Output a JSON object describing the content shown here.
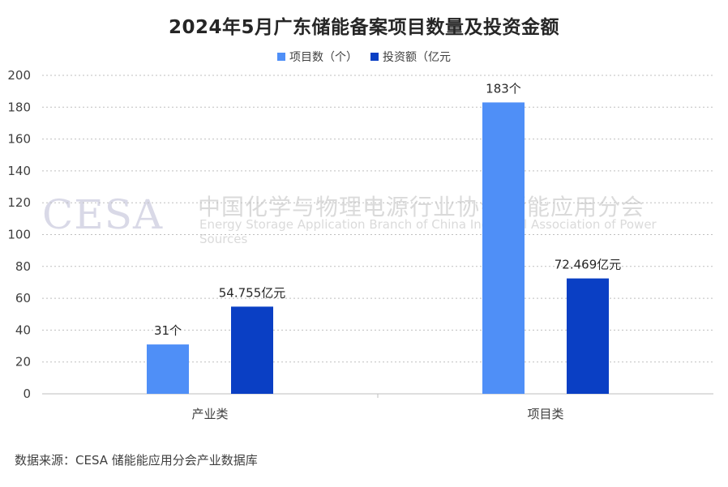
{
  "title": "2024年5月广东储能备案项目数量及投资金额",
  "source": "数据来源：CESA 储能能应用分会产业数据库",
  "watermark": {
    "logo": "CESA",
    "cn": "中国化学与物理电源行业协会储能应用分会",
    "en": "Energy Storage Application Branch of China Industrial Association of Power Sources"
  },
  "colors": {
    "series1": "#4f8ff7",
    "series2": "#0a3fc4",
    "grid": "#bfbfbf",
    "axis": "#bfbfbf",
    "text": "#404040"
  },
  "chart_data": {
    "type": "bar",
    "categories": [
      "产业类",
      "项目类"
    ],
    "series": [
      {
        "name": "项目数（个）",
        "values": [
          31,
          183
        ],
        "labels": [
          "31个",
          "183个"
        ]
      },
      {
        "name": "投资额（亿元",
        "values": [
          54.755,
          72.469
        ],
        "labels": [
          "54.755亿元",
          "72.469亿元"
        ]
      }
    ],
    "yticks": [
      "0",
      "20",
      "40",
      "60",
      "80",
      "100",
      "120",
      "140",
      "160",
      "180",
      "200"
    ],
    "ylim": [
      0,
      200
    ],
    "grid": true,
    "legend": "top-center"
  }
}
